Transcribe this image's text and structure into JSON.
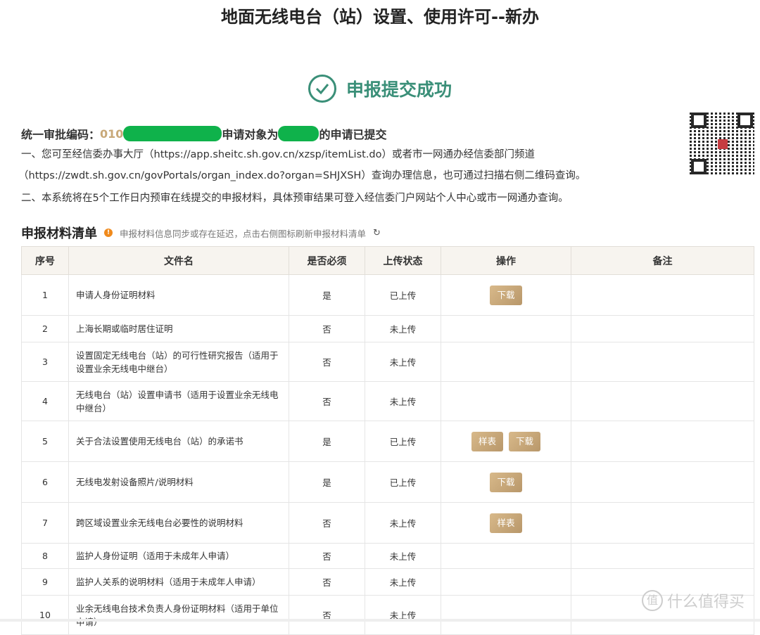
{
  "page_title": "地面无线电台（站）设置、使用许可--新办",
  "success_text": "申报提交成功",
  "summary": {
    "code_label": "统一审批编码：",
    "code_visible": "010",
    "middle": "申请对象为",
    "end": "的申请已提交"
  },
  "para1": "一、您可至经信委办事大厅（https://app.sheitc.sh.gov.cn/xzsp/itemList.do）或者市一网通办经信委部门频道",
  "para1b": "（https://zwdt.sh.gov.cn/govPortals/organ_index.do?organ=SHJXSH）查询办理信息，也可通过扫描右侧二维码查询。",
  "para2": "二、本系统将在5个工作日内预审在线提交的申报材料，具体预审结果可登入经信委门户网站个人中心或市一网通办查询。",
  "section_title": "申报材料清单",
  "hint": "申报材料信息同步或存在延迟，点击右侧图标刷新申报材料清单",
  "colors": {
    "accent": "#3a8f78",
    "button": "#c8a878",
    "mask": "#0fb24b"
  },
  "table": {
    "headers": [
      "序号",
      "文件名",
      "是否必须",
      "上传状态",
      "操作",
      "备注"
    ],
    "rows": [
      {
        "no": "1",
        "name": "申请人身份证明材料",
        "required": "是",
        "status": "已上传",
        "actions": [
          "下载"
        ],
        "h": 58
      },
      {
        "no": "2",
        "name": "上海长期或临时居住证明",
        "required": "否",
        "status": "未上传",
        "actions": [],
        "h": 38
      },
      {
        "no": "3",
        "name": "设置固定无线电台（站）的可行性研究报告（适用于设置业余无线电中继台）",
        "required": "否",
        "status": "未上传",
        "actions": [],
        "h": 56
      },
      {
        "no": "4",
        "name": "无线电台（站）设置申请书（适用于设置业余无线电中继台）",
        "required": "否",
        "status": "未上传",
        "actions": [],
        "h": 56
      },
      {
        "no": "5",
        "name": "关于合法设置使用无线电台（站）的承诺书",
        "required": "是",
        "status": "已上传",
        "actions": [
          "样表",
          "下载"
        ],
        "h": 58
      },
      {
        "no": "6",
        "name": "无线电发射设备照片/说明材料",
        "required": "是",
        "status": "已上传",
        "actions": [
          "下载"
        ],
        "h": 58
      },
      {
        "no": "7",
        "name": "跨区域设置业余无线电台必要性的说明材料",
        "required": "否",
        "status": "未上传",
        "actions": [
          "样表"
        ],
        "h": 58
      },
      {
        "no": "8",
        "name": "监护人身份证明（适用于未成年人申请）",
        "required": "否",
        "status": "未上传",
        "actions": [],
        "h": 36
      },
      {
        "no": "9",
        "name": "监护人关系的说明材料（适用于未成年人申请）",
        "required": "否",
        "status": "未上传",
        "actions": [],
        "h": 38
      },
      {
        "no": "10",
        "name": "业余无线电台技术负责人身份证明材料（适用于单位申请）",
        "required": "否",
        "status": "未上传",
        "actions": [],
        "h": 56
      }
    ]
  },
  "watermark": "什么值得买"
}
